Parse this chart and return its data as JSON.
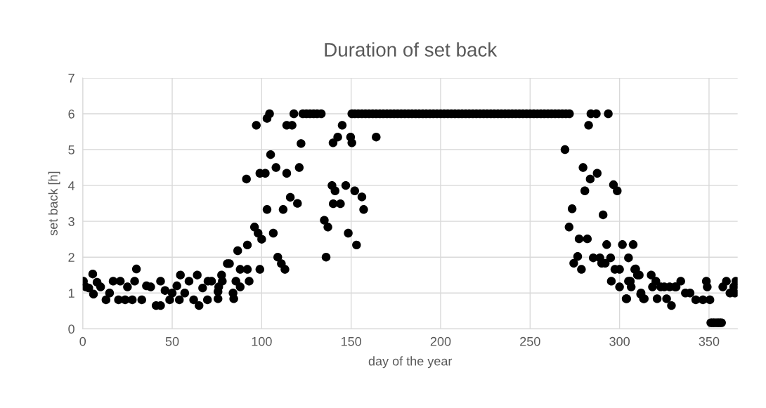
{
  "chart_data": {
    "type": "scatter",
    "title": "Duration of set back",
    "xlabel": "day of the year",
    "ylabel": "set back [h]",
    "xlim": [
      0,
      366
    ],
    "xticks": [
      0,
      50,
      100,
      150,
      200,
      250,
      300,
      350
    ],
    "ylim": [
      0,
      7
    ],
    "yticks": [
      0,
      1,
      2,
      3,
      4,
      5,
      6,
      7
    ],
    "grid": true,
    "marker": "circle",
    "series": [
      {
        "color": "#000000",
        "x": [
          0.4,
          1.7,
          3.4,
          5.6,
          6,
          8,
          10,
          13,
          15,
          17,
          20,
          21,
          23.7,
          25,
          27.7,
          29,
          30,
          33,
          35.6,
          38,
          41,
          43.5,
          43.5,
          46,
          48.6,
          50,
          52.6,
          54,
          54.6,
          57,
          59.4,
          62,
          64,
          65,
          67,
          69.7,
          70,
          72,
          75.6,
          75.6,
          76,
          77.6,
          78,
          80.8,
          82,
          84,
          84.4,
          85.6,
          86.6,
          88,
          88,
          91.5,
          92,
          92,
          93,
          96,
          97,
          98,
          99,
          99,
          100,
          102,
          103,
          103,
          104.4,
          105,
          106.5,
          108,
          109,
          111,
          112,
          113,
          114,
          114,
          116,
          117,
          118,
          120,
          121,
          122,
          123,
          125,
          127,
          129,
          131,
          133.3,
          135,
          136,
          137,
          139.3,
          139.9,
          140,
          141,
          142.5,
          144,
          145,
          147,
          148.4,
          149.7,
          150.4,
          150.4,
          152,
          153,
          156,
          157,
          164,
          152,
          154,
          156,
          158,
          160,
          162,
          164,
          166,
          168,
          170,
          172,
          174,
          176,
          178,
          180,
          182,
          184,
          186,
          188,
          190,
          192,
          194,
          196,
          198,
          200,
          202,
          204,
          206,
          208,
          210,
          212,
          214,
          216,
          218,
          220,
          222,
          224,
          226,
          228,
          230,
          232,
          234,
          236,
          238,
          240,
          242,
          244,
          246,
          248,
          250,
          252,
          254,
          256,
          258,
          260,
          262,
          264,
          266,
          268,
          270,
          272,
          269.5,
          271.8,
          273.5,
          274.4,
          276.6,
          277.4,
          278.7,
          279.6,
          280.6,
          282,
          282.7,
          283.6,
          284,
          285.3,
          287,
          287.5,
          289,
          290,
          290.8,
          292,
          292.8,
          293.7,
          295,
          295.4,
          296.6,
          297.4,
          298.7,
          300,
          300,
          301.6,
          303.7,
          304,
          305,
          305,
          306,
          306.5,
          307.6,
          308.5,
          309,
          310,
          311,
          311.8,
          312,
          313.4,
          313.8,
          317.7,
          318.4,
          320.3,
          321,
          323,
          325,
          326.3,
          328,
          329,
          331,
          331.6,
          334.2,
          336.8,
          339.4,
          342.6,
          346.6,
          348.5,
          349,
          350.5,
          351,
          352,
          353,
          354,
          355,
          356,
          357,
          357.7,
          359.7,
          361.7,
          363.8,
          364.4,
          365
        ],
        "values": [
          1.33,
          1.17,
          1.14,
          1.53,
          0.97,
          1.3,
          1.17,
          0.81,
          1.0,
          1.33,
          0.81,
          1.33,
          0.81,
          1.17,
          0.81,
          1.33,
          1.67,
          0.81,
          1.2,
          1.17,
          0.65,
          0.65,
          1.33,
          1.07,
          0.81,
          1.0,
          1.2,
          0.81,
          1.5,
          1.0,
          1.33,
          0.81,
          1.5,
          0.65,
          1.14,
          0.81,
          1.33,
          1.33,
          1.04,
          0.84,
          1.17,
          1.5,
          1.33,
          1.82,
          1.82,
          1.0,
          0.84,
          1.33,
          2.18,
          1.66,
          1.17,
          4.18,
          1.66,
          2.34,
          1.33,
          2.84,
          5.68,
          2.67,
          1.66,
          4.34,
          2.5,
          4.34,
          3.33,
          5.87,
          6,
          4.86,
          2.67,
          4.5,
          2.0,
          1.82,
          3.33,
          1.66,
          4.34,
          5.68,
          3.67,
          5.68,
          6,
          3.5,
          4.5,
          5.17,
          6,
          6,
          6,
          6,
          6,
          6,
          3.03,
          2.0,
          2.84,
          4.0,
          5.19,
          3.49,
          3.85,
          5.35,
          3.49,
          5.68,
          4.0,
          2.67,
          5.35,
          5.19,
          6,
          3.85,
          2.34,
          3.68,
          3.33,
          5.35,
          6,
          6,
          6,
          6,
          6,
          6,
          6,
          6,
          6,
          6,
          6,
          6,
          6,
          6,
          6,
          6,
          6,
          6,
          6,
          6,
          6,
          6,
          6,
          6,
          6,
          6,
          6,
          6,
          6,
          6,
          6,
          6,
          6,
          6,
          6,
          6,
          6,
          6,
          6,
          6,
          6,
          6,
          6,
          6,
          6,
          6,
          6,
          6,
          6,
          6,
          6,
          6,
          6,
          6,
          6,
          6,
          6,
          6,
          6,
          6,
          6,
          5.0,
          2.84,
          3.35,
          1.83,
          2.02,
          2.51,
          1.66,
          4.5,
          3.85,
          2.51,
          5.68,
          4.18,
          6,
          1.98,
          6,
          4.34,
          1.98,
          1.83,
          3.18,
          1.83,
          2.35,
          6,
          1.98,
          1.33,
          4.02,
          1.66,
          3.85,
          1.66,
          1.17,
          2.35,
          0.84,
          0.84,
          1.98,
          1.33,
          1.33,
          1.17,
          2.35,
          1.66,
          1.67,
          1.5,
          1.5,
          0.97,
          1.0,
          0.84,
          0.84,
          1.5,
          1.17,
          1.33,
          0.84,
          1.17,
          1.17,
          0.84,
          1.17,
          0.65,
          1.17,
          1.17,
          1.33,
          1.0,
          1.0,
          0.81,
          0.81,
          1.33,
          1.17,
          0.81,
          0.17,
          0.17,
          0.17,
          0.17,
          0.17,
          0.17,
          0.17,
          1.17,
          1.33,
          1.0,
          1.17,
          1.0,
          1.33
        ]
      }
    ]
  }
}
